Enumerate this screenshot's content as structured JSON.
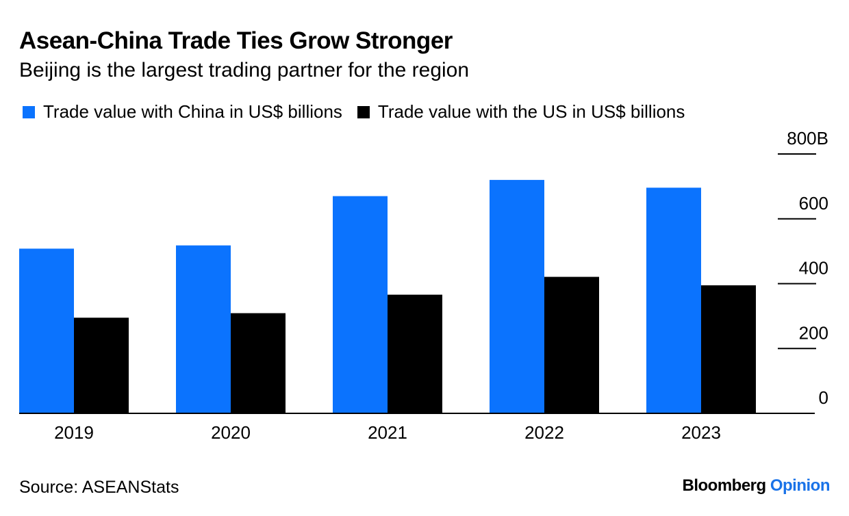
{
  "header": {
    "title": "Asean-China Trade Ties Grow Stronger",
    "subtitle": "Beijing is the largest trading partner for the region"
  },
  "legend": {
    "china_label": "Trade value with China in US$ billions",
    "us_label": "Trade value with the US in US$ billions"
  },
  "colors": {
    "china": "#0b73fe",
    "us": "#000000"
  },
  "footer": {
    "source": "Source: ASEANStats",
    "brand_name": "Bloomberg",
    "brand_section": "Opinion"
  },
  "chart_data": {
    "type": "bar",
    "title": "Asean-China Trade Ties Grow Stronger",
    "subtitle": "Beijing is the largest trading partner for the region",
    "xlabel": "",
    "ylabel": "",
    "categories": [
      "2019",
      "2020",
      "2021",
      "2022",
      "2023"
    ],
    "series": [
      {
        "name": "Trade value with China in US$ billions",
        "values": [
          508,
          518,
          670,
          720,
          696
        ]
      },
      {
        "name": "Trade value with the US in US$ billions",
        "values": [
          295,
          309,
          366,
          421,
          395
        ]
      }
    ],
    "ylim": [
      0,
      800
    ],
    "yticks": [
      {
        "value": 0,
        "label": "0"
      },
      {
        "value": 200,
        "label": "200"
      },
      {
        "value": 400,
        "label": "400"
      },
      {
        "value": 600,
        "label": "600"
      },
      {
        "value": 800,
        "label": "800B"
      }
    ],
    "grid": false,
    "yaxis_position": "right",
    "legend_position": "top-left"
  }
}
